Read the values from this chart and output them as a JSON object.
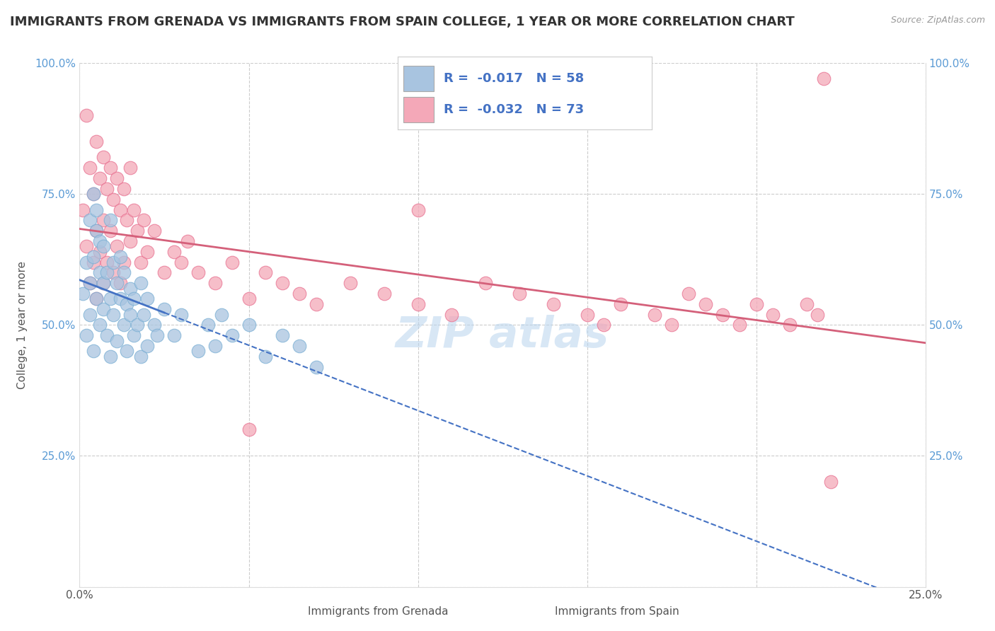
{
  "title": "IMMIGRANTS FROM GRENADA VS IMMIGRANTS FROM SPAIN COLLEGE, 1 YEAR OR MORE CORRELATION CHART",
  "source_text": "Source: ZipAtlas.com",
  "ylabel": "College, 1 year or more",
  "xlabel_grenada": "Immigrants from Grenada",
  "xlabel_spain": "Immigrants from Spain",
  "grenada_R": -0.017,
  "grenada_N": 58,
  "spain_R": -0.032,
  "spain_N": 73,
  "xlim": [
    0.0,
    0.25
  ],
  "ylim": [
    0.0,
    1.0
  ],
  "xticks": [
    0.0,
    0.05,
    0.1,
    0.15,
    0.2,
    0.25
  ],
  "xtick_labels": [
    "0.0%",
    "",
    "",
    "",
    "",
    "25.0%"
  ],
  "yticks": [
    0.0,
    0.25,
    0.5,
    0.75,
    1.0
  ],
  "ytick_labels": [
    "",
    "25.0%",
    "50.0%",
    "75.0%",
    "100.0%"
  ],
  "grenada_color": "#a8c4e0",
  "grenada_edge_color": "#7aafd4",
  "spain_color": "#f4a8b8",
  "spain_edge_color": "#e87090",
  "grenada_line_color": "#4472c4",
  "spain_line_color": "#d4607a",
  "background_color": "#ffffff",
  "grid_color": "#cccccc",
  "title_fontsize": 13,
  "axis_label_fontsize": 11,
  "tick_fontsize": 11,
  "legend_fontsize": 13,
  "grenada_x": [
    0.001,
    0.002,
    0.002,
    0.003,
    0.003,
    0.003,
    0.004,
    0.004,
    0.004,
    0.005,
    0.005,
    0.005,
    0.006,
    0.006,
    0.006,
    0.007,
    0.007,
    0.007,
    0.008,
    0.008,
    0.009,
    0.009,
    0.009,
    0.01,
    0.01,
    0.011,
    0.011,
    0.012,
    0.012,
    0.013,
    0.013,
    0.014,
    0.014,
    0.015,
    0.015,
    0.016,
    0.016,
    0.017,
    0.018,
    0.018,
    0.019,
    0.02,
    0.02,
    0.022,
    0.023,
    0.025,
    0.028,
    0.03,
    0.035,
    0.038,
    0.04,
    0.042,
    0.045,
    0.05,
    0.055,
    0.06,
    0.065,
    0.07
  ],
  "grenada_y": [
    0.56,
    0.62,
    0.48,
    0.7,
    0.58,
    0.52,
    0.75,
    0.63,
    0.45,
    0.68,
    0.55,
    0.72,
    0.6,
    0.5,
    0.66,
    0.58,
    0.53,
    0.65,
    0.48,
    0.6,
    0.55,
    0.7,
    0.44,
    0.62,
    0.52,
    0.58,
    0.47,
    0.55,
    0.63,
    0.5,
    0.6,
    0.54,
    0.45,
    0.57,
    0.52,
    0.48,
    0.55,
    0.5,
    0.44,
    0.58,
    0.52,
    0.46,
    0.55,
    0.5,
    0.48,
    0.53,
    0.48,
    0.52,
    0.45,
    0.5,
    0.46,
    0.52,
    0.48,
    0.5,
    0.44,
    0.48,
    0.46,
    0.42
  ],
  "spain_x": [
    0.001,
    0.002,
    0.002,
    0.003,
    0.003,
    0.004,
    0.004,
    0.005,
    0.005,
    0.005,
    0.006,
    0.006,
    0.007,
    0.007,
    0.007,
    0.008,
    0.008,
    0.009,
    0.009,
    0.01,
    0.01,
    0.011,
    0.011,
    0.012,
    0.012,
    0.013,
    0.013,
    0.014,
    0.015,
    0.015,
    0.016,
    0.017,
    0.018,
    0.019,
    0.02,
    0.022,
    0.025,
    0.028,
    0.03,
    0.032,
    0.035,
    0.04,
    0.045,
    0.05,
    0.055,
    0.06,
    0.065,
    0.07,
    0.08,
    0.09,
    0.1,
    0.11,
    0.12,
    0.13,
    0.14,
    0.15,
    0.155,
    0.16,
    0.17,
    0.175,
    0.18,
    0.185,
    0.19,
    0.195,
    0.2,
    0.205,
    0.21,
    0.215,
    0.218,
    0.22,
    0.222,
    0.05,
    0.1
  ],
  "spain_y": [
    0.72,
    0.9,
    0.65,
    0.8,
    0.58,
    0.75,
    0.62,
    0.85,
    0.68,
    0.55,
    0.78,
    0.64,
    0.82,
    0.7,
    0.58,
    0.76,
    0.62,
    0.8,
    0.68,
    0.74,
    0.6,
    0.78,
    0.65,
    0.72,
    0.58,
    0.76,
    0.62,
    0.7,
    0.8,
    0.66,
    0.72,
    0.68,
    0.62,
    0.7,
    0.64,
    0.68,
    0.6,
    0.64,
    0.62,
    0.66,
    0.6,
    0.58,
    0.62,
    0.55,
    0.6,
    0.58,
    0.56,
    0.54,
    0.58,
    0.56,
    0.54,
    0.52,
    0.58,
    0.56,
    0.54,
    0.52,
    0.5,
    0.54,
    0.52,
    0.5,
    0.56,
    0.54,
    0.52,
    0.5,
    0.54,
    0.52,
    0.5,
    0.54,
    0.52,
    0.97,
    0.2,
    0.3,
    0.72
  ]
}
